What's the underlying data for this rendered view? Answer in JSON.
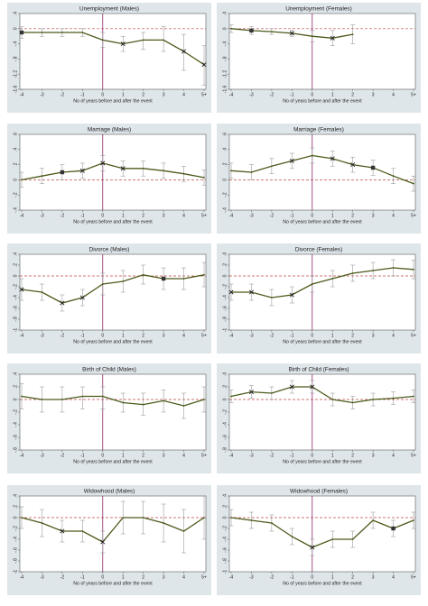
{
  "chart_data": [
    {
      "type": "line",
      "title": "Unemployment (Males)",
      "xlabel": "No of years before and after the event",
      "categories": [
        "-4",
        "-3",
        "-2",
        "-1",
        "0",
        "1",
        "2",
        "3",
        "4",
        "5+"
      ],
      "yticks": [
        ".4",
        "0",
        "-.4",
        "-.8",
        "-1.2",
        "-1.6"
      ],
      "ytick_values": [
        0.4,
        0,
        -0.4,
        -0.8,
        -1.2,
        -1.6
      ],
      "ylim": [
        -1.6,
        0.4
      ],
      "values": [
        -0.1,
        -0.1,
        -0.1,
        -0.1,
        -0.3,
        -0.4,
        -0.3,
        -0.3,
        -0.6,
        -0.95
      ],
      "lower": [
        -0.25,
        -0.2,
        -0.2,
        -0.2,
        -0.5,
        -0.6,
        -0.55,
        -0.6,
        -1.1,
        -1.5
      ],
      "upper": [
        0.05,
        0.0,
        0.0,
        0.0,
        -0.1,
        -0.2,
        -0.1,
        0.05,
        -0.15,
        -0.45
      ],
      "markers": [
        {
          "index": 0,
          "shape": "square"
        },
        {
          "index": 5,
          "shape": "x"
        },
        {
          "index": 8,
          "shape": "x"
        },
        {
          "index": 9,
          "shape": "x"
        }
      ]
    },
    {
      "type": "line",
      "title": "Unemployment (Females)",
      "xlabel": "No of years before and after the event",
      "categories": [
        "-4",
        "-3",
        "-2",
        "-1",
        "0",
        "1",
        "2",
        "3",
        "4",
        "5+"
      ],
      "yticks": [
        ".4",
        "0",
        "-.4",
        "-.8",
        "-1.2",
        "-1.6"
      ],
      "ytick_values": [
        0.4,
        0,
        -0.4,
        -0.8,
        -1.2,
        -1.6
      ],
      "ylim": [
        -1.6,
        0.4
      ],
      "values": [
        0.0,
        -0.05,
        -0.08,
        -0.12,
        -0.2,
        -0.25,
        -0.15,
        null,
        null,
        null
      ],
      "lower": [
        -0.1,
        -0.15,
        -0.15,
        -0.2,
        -0.35,
        -0.45,
        -0.4,
        null,
        null,
        null
      ],
      "upper": [
        0.1,
        0.05,
        0.0,
        -0.05,
        -0.05,
        -0.05,
        0.1,
        null,
        null,
        null
      ],
      "markers": [
        {
          "index": 1,
          "shape": "square"
        },
        {
          "index": 3,
          "shape": "x"
        },
        {
          "index": 5,
          "shape": "x"
        }
      ]
    },
    {
      "type": "line",
      "title": "Marriage (Males)",
      "xlabel": "No of years before and after the event",
      "categories": [
        "-4",
        "-3",
        "-2",
        "-1",
        "0",
        "1",
        "2",
        "3",
        "4",
        "5+"
      ],
      "yticks": [
        ".6",
        ".4",
        ".2",
        "0",
        "-.2",
        "-.4"
      ],
      "ytick_values": [
        0.6,
        0.4,
        0.2,
        0,
        -0.2,
        -0.4
      ],
      "ylim": [
        -0.4,
        0.6
      ],
      "values": [
        0.0,
        0.05,
        0.1,
        0.12,
        0.22,
        0.15,
        0.15,
        0.12,
        0.08,
        0.03
      ],
      "lower": [
        -0.1,
        -0.05,
        0.0,
        0.02,
        0.12,
        0.05,
        0.05,
        0.02,
        -0.02,
        -0.07
      ],
      "upper": [
        0.1,
        0.15,
        0.2,
        0.22,
        0.32,
        0.25,
        0.25,
        0.22,
        0.18,
        0.13
      ],
      "markers": [
        {
          "index": 2,
          "shape": "square"
        },
        {
          "index": 3,
          "shape": "x"
        },
        {
          "index": 4,
          "shape": "x"
        },
        {
          "index": 5,
          "shape": "x"
        }
      ]
    },
    {
      "type": "line",
      "title": "Marriage (Females)",
      "xlabel": "No of years before and after the event",
      "categories": [
        "-4",
        "-3",
        "-2",
        "-1",
        "0",
        "1",
        "2",
        "3",
        "4",
        "5+"
      ],
      "yticks": [
        ".6",
        ".4",
        ".2",
        "0",
        "-.2",
        "-.4"
      ],
      "ytick_values": [
        0.6,
        0.4,
        0.2,
        0,
        -0.2,
        -0.4
      ],
      "ylim": [
        -0.4,
        0.6
      ],
      "values": [
        0.12,
        0.1,
        0.18,
        0.25,
        0.32,
        0.28,
        0.2,
        0.16,
        0.05,
        -0.05
      ],
      "lower": [
        0.02,
        0.0,
        0.08,
        0.15,
        0.22,
        0.18,
        0.1,
        0.06,
        -0.05,
        -0.15
      ],
      "upper": [
        0.22,
        0.2,
        0.28,
        0.35,
        0.42,
        0.38,
        0.3,
        0.26,
        0.15,
        0.05
      ],
      "markers": [
        {
          "index": 3,
          "shape": "x"
        },
        {
          "index": 5,
          "shape": "x"
        },
        {
          "index": 6,
          "shape": "x"
        },
        {
          "index": 7,
          "shape": "square"
        }
      ]
    },
    {
      "type": "line",
      "title": "Divorce (Males)",
      "xlabel": "No of years before and after the event",
      "categories": [
        "-4",
        "-3",
        "-2",
        "-1",
        "0",
        "1",
        "2",
        "3",
        "4",
        "5+"
      ],
      "yticks": [
        ".4",
        ".2",
        "0",
        "-.2",
        "-.4",
        "-.6",
        "-.8",
        "-1"
      ],
      "ytick_values": [
        0.4,
        0.2,
        0,
        -0.2,
        -0.4,
        -0.6,
        -0.8,
        -1
      ],
      "ylim": [
        -1,
        0.4
      ],
      "values": [
        -0.25,
        -0.3,
        -0.5,
        -0.4,
        -0.15,
        -0.1,
        0.02,
        -0.05,
        -0.05,
        0.02
      ],
      "lower": [
        -0.45,
        -0.45,
        -0.65,
        -0.55,
        -0.35,
        -0.3,
        -0.15,
        -0.25,
        -0.25,
        -0.2
      ],
      "upper": [
        -0.05,
        -0.15,
        -0.35,
        -0.25,
        0.05,
        0.1,
        0.2,
        0.15,
        0.15,
        0.25
      ],
      "markers": [
        {
          "index": 0,
          "shape": "x"
        },
        {
          "index": 2,
          "shape": "x"
        },
        {
          "index": 3,
          "shape": "x"
        },
        {
          "index": 7,
          "shape": "square"
        }
      ]
    },
    {
      "type": "line",
      "title": "Divorce (Females)",
      "xlabel": "No of years before and after the event",
      "categories": [
        "-4",
        "-3",
        "-2",
        "-1",
        "0",
        "1",
        "2",
        "3",
        "4",
        "5+"
      ],
      "yticks": [
        ".4",
        ".2",
        "0",
        "-.2",
        "-.4",
        "-.6",
        "-.8",
        "-1"
      ],
      "ytick_values": [
        0.4,
        0.2,
        0,
        -0.2,
        -0.4,
        -0.6,
        -0.8,
        -1
      ],
      "ylim": [
        -1,
        0.4
      ],
      "values": [
        -0.3,
        -0.3,
        -0.4,
        -0.35,
        -0.15,
        -0.05,
        0.05,
        0.1,
        0.15,
        0.12
      ],
      "lower": [
        -0.45,
        -0.45,
        -0.55,
        -0.5,
        -0.3,
        -0.2,
        -0.1,
        -0.05,
        0.0,
        -0.05
      ],
      "upper": [
        -0.15,
        -0.15,
        -0.25,
        -0.2,
        0.0,
        0.1,
        0.2,
        0.25,
        0.3,
        0.29
      ],
      "markers": [
        {
          "index": 0,
          "shape": "x"
        },
        {
          "index": 1,
          "shape": "x"
        },
        {
          "index": 3,
          "shape": "x"
        }
      ]
    },
    {
      "type": "line",
      "title": "Birth of Child (Males)",
      "xlabel": "No of years before and after the event",
      "categories": [
        "-4",
        "-3",
        "-2",
        "-1",
        "0",
        "1",
        "2",
        "3",
        "4",
        "5+"
      ],
      "yticks": [
        ".4",
        ".2",
        "0",
        "-.2",
        "-.4",
        "-.6",
        "-.8"
      ],
      "ytick_values": [
        0.4,
        0.2,
        0,
        -0.2,
        -0.4,
        -0.6,
        -0.8
      ],
      "ylim": [
        -0.8,
        0.4
      ],
      "values": [
        0.05,
        0.0,
        0.0,
        0.05,
        0.05,
        -0.05,
        -0.08,
        -0.02,
        -0.1,
        0.0
      ],
      "lower": [
        -0.15,
        -0.2,
        -0.2,
        -0.15,
        -0.15,
        -0.2,
        -0.25,
        -0.2,
        -0.3,
        -0.2
      ],
      "upper": [
        0.25,
        0.2,
        0.2,
        0.2,
        0.2,
        0.1,
        0.1,
        0.15,
        0.1,
        0.2
      ],
      "markers": []
    },
    {
      "type": "line",
      "title": "Birth of Child (Females)",
      "xlabel": "No of years before and after the event",
      "categories": [
        "-4",
        "-3",
        "-2",
        "-1",
        "0",
        "1",
        "2",
        "3",
        "4",
        "5+"
      ],
      "yticks": [
        ".4",
        ".2",
        "0",
        "-.2",
        "-.4",
        "-.6",
        "-.8"
      ],
      "ytick_values": [
        0.4,
        0.2,
        0,
        -0.2,
        -0.4,
        -0.6,
        -0.8
      ],
      "ylim": [
        -0.8,
        0.4
      ],
      "values": [
        0.05,
        0.12,
        0.1,
        0.2,
        0.2,
        0.0,
        -0.05,
        0.0,
        0.02,
        0.05
      ],
      "lower": [
        -0.05,
        0.02,
        0.0,
        0.1,
        0.1,
        -0.1,
        -0.15,
        -0.1,
        -0.08,
        -0.05
      ],
      "upper": [
        0.15,
        0.22,
        0.2,
        0.3,
        0.3,
        0.1,
        0.05,
        0.1,
        0.12,
        0.15
      ],
      "markers": [
        {
          "index": 1,
          "shape": "x"
        },
        {
          "index": 3,
          "shape": "x"
        },
        {
          "index": 4,
          "shape": "x"
        }
      ]
    },
    {
      "type": "line",
      "title": "Widowhood (Males)",
      "xlabel": "No of years before and after the event",
      "categories": [
        "-4",
        "-3",
        "-2",
        "-1",
        "0",
        "1",
        "2",
        "3",
        "4",
        "5+"
      ],
      "yticks": [
        ".4",
        ".2",
        "0",
        "-.2",
        "-.4",
        "-.6",
        "-.8",
        "-1"
      ],
      "ytick_values": [
        0.4,
        0.2,
        0,
        -0.2,
        -0.4,
        -0.6,
        -0.8,
        -1
      ],
      "ylim": [
        -1,
        0.4
      ],
      "values": [
        0.0,
        -0.1,
        -0.25,
        -0.25,
        -0.45,
        0.0,
        0.0,
        -0.1,
        -0.25,
        0.0
      ],
      "lower": [
        -0.2,
        -0.35,
        -0.45,
        -0.45,
        -0.65,
        -0.3,
        -0.3,
        -0.45,
        -0.65,
        -0.4
      ],
      "upper": [
        0.2,
        0.15,
        -0.05,
        -0.05,
        -0.25,
        0.3,
        0.3,
        0.25,
        0.15,
        0.4
      ],
      "markers": [
        {
          "index": 2,
          "shape": "x"
        },
        {
          "index": 4,
          "shape": "x"
        }
      ]
    },
    {
      "type": "line",
      "title": "Widowhood (Females)",
      "xlabel": "No of years before and after the event",
      "categories": [
        "-4",
        "-3",
        "-2",
        "-1",
        "0",
        "1",
        "2",
        "3",
        "4",
        "5+"
      ],
      "yticks": [
        ".4",
        ".2",
        "0",
        "-.2",
        "-.4",
        "-.6",
        "-.8",
        "-1"
      ],
      "ytick_values": [
        0.4,
        0.2,
        0,
        -0.2,
        -0.4,
        -0.6,
        -0.8,
        -1
      ],
      "ylim": [
        -1,
        0.4
      ],
      "values": [
        0.0,
        -0.05,
        -0.1,
        -0.35,
        -0.55,
        -0.4,
        -0.4,
        -0.05,
        -0.2,
        -0.05
      ],
      "lower": [
        -0.15,
        -0.2,
        -0.25,
        -0.5,
        -0.7,
        -0.55,
        -0.55,
        -0.2,
        -0.35,
        -0.2
      ],
      "upper": [
        0.15,
        0.1,
        0.05,
        -0.2,
        -0.4,
        -0.25,
        -0.25,
        0.1,
        -0.05,
        0.1
      ],
      "markers": [
        {
          "index": 4,
          "shape": "x"
        },
        {
          "index": 8,
          "shape": "square"
        }
      ]
    }
  ],
  "colors": {
    "title_band": "#dfe6ea",
    "plot_bg": "#ffffff",
    "line": "#4a5a1a",
    "error_bar": "#8a8a8a",
    "zero_line": "#c04848",
    "event_line": "#8b2a6a",
    "frame": "#5a5a5a"
  }
}
